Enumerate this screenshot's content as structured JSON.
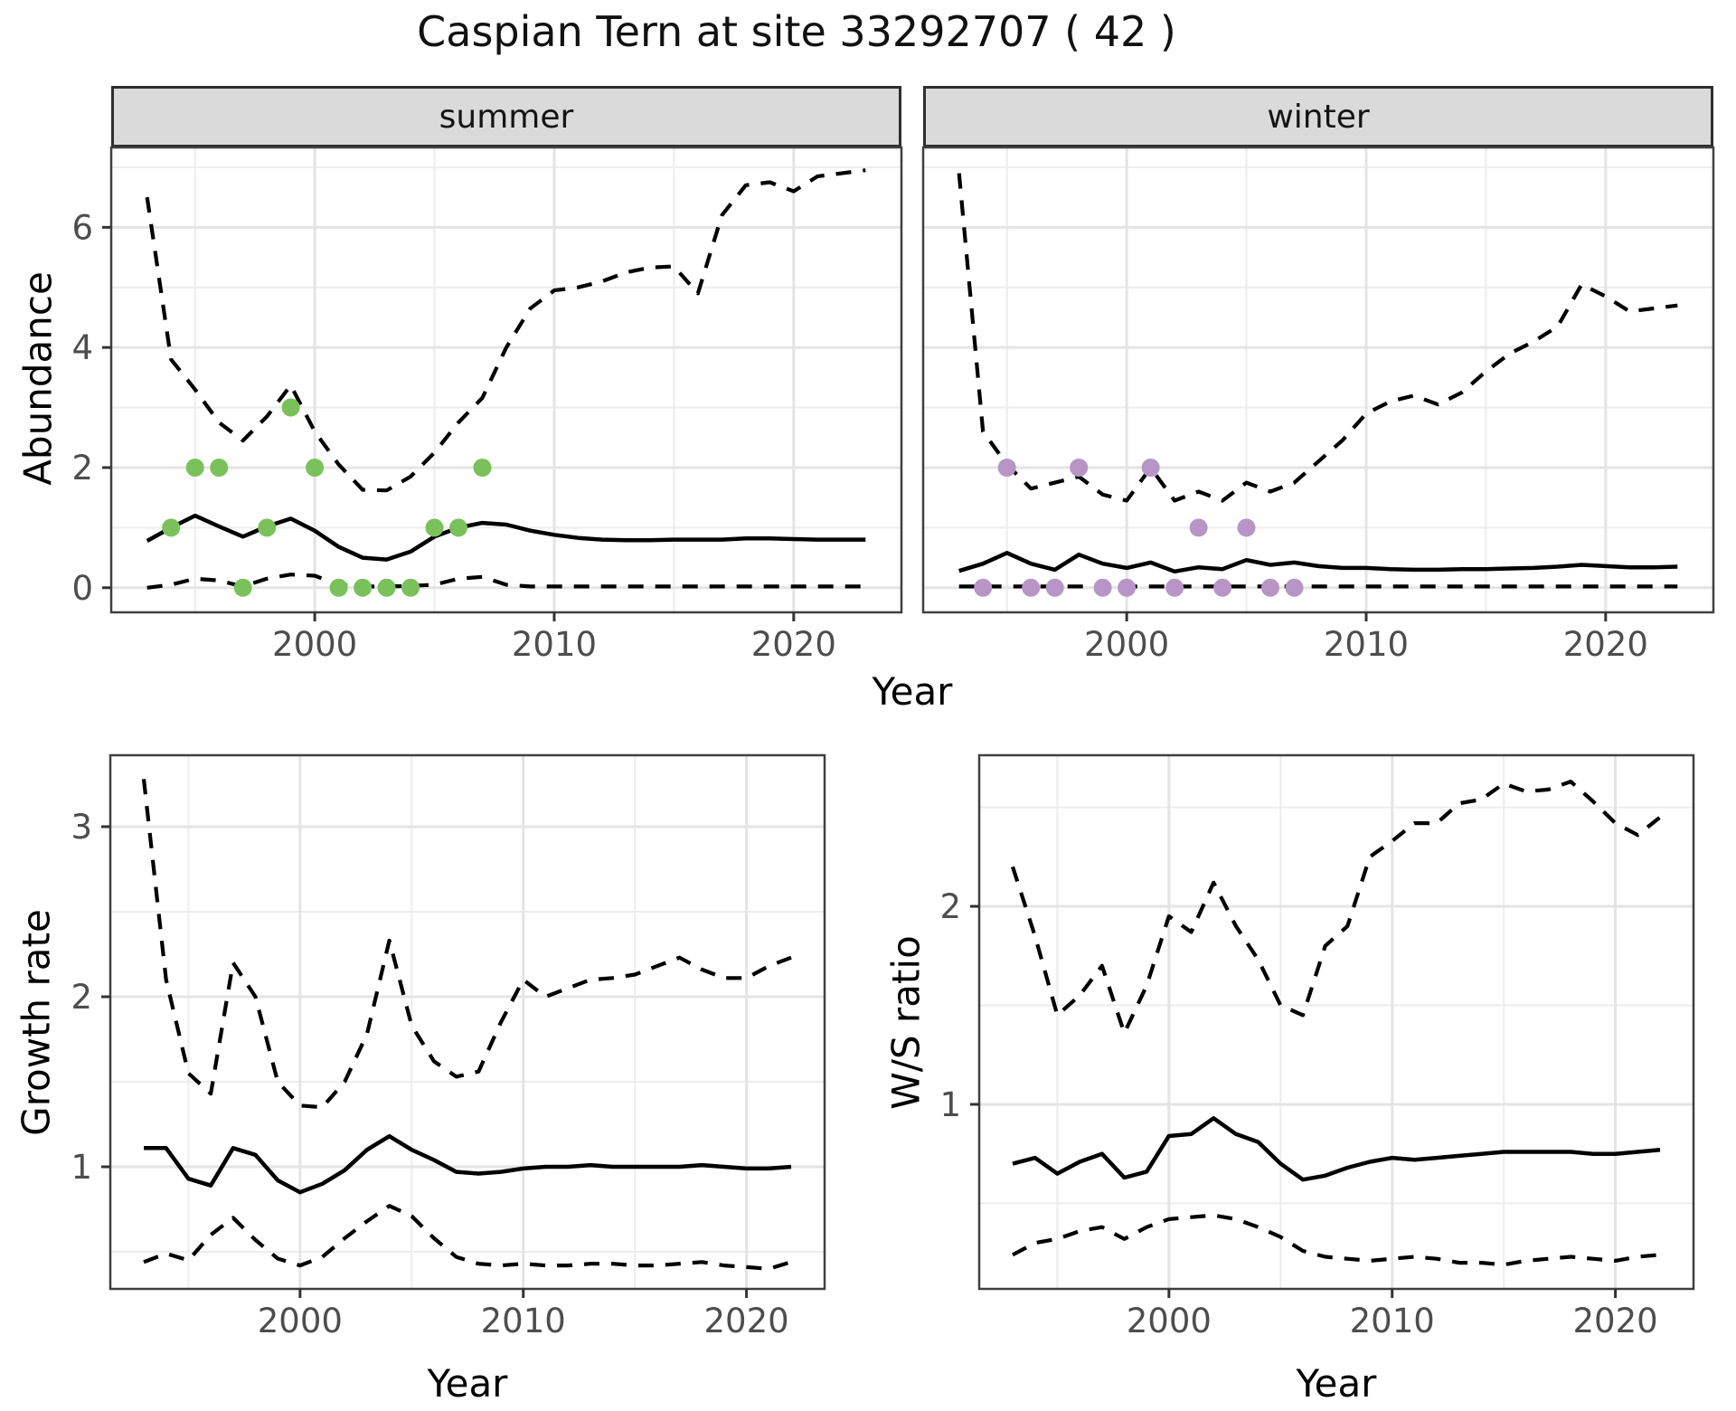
{
  "title": "Caspian Tern at site 33292707 ( 42 )",
  "colors": {
    "background": "#ffffff",
    "line": "#000000",
    "ci_dash": "#000000",
    "summer_points": "#7ac15c",
    "winter_points": "#b795c6",
    "grid_major": "#e4e4e4",
    "grid_minor": "#ededed",
    "panel_border": "#404040",
    "strip_bg": "#dadada",
    "tick_label": "#4d4d4d",
    "tick_mark": "#333333"
  },
  "axes": {
    "top": {
      "ylabel": "Abundance",
      "xlabel": "Year",
      "ytick_values": [
        0,
        2,
        4,
        6
      ],
      "ytick_labels": [
        "0",
        "2",
        "4",
        "6"
      ],
      "yminor": [
        1,
        3,
        5,
        7
      ],
      "xtick_values": [
        2000,
        2010,
        2020
      ],
      "xtick_labels": [
        "2000",
        "2010",
        "2020"
      ],
      "xminor": [
        1995,
        2005,
        2015
      ],
      "xdomain": [
        1991.5,
        2024.5
      ],
      "ydomain": [
        -0.41,
        7.33
      ]
    },
    "growth": {
      "ylabel": "Growth rate",
      "xlabel": "Year",
      "ytick_values": [
        1,
        2,
        3
      ],
      "ytick_labels": [
        "1",
        "2",
        "3"
      ],
      "yminor": [
        0.5,
        1.5,
        2.5
      ],
      "xtick_values": [
        2000,
        2010,
        2020
      ],
      "xtick_labels": [
        "2000",
        "2010",
        "2020"
      ],
      "xminor": [
        1995,
        2005,
        2015
      ],
      "xdomain": [
        1991.5,
        2023.5
      ],
      "ydomain": [
        0.282,
        3.42
      ]
    },
    "ws": {
      "ylabel": "W/S ratio",
      "xlabel": "Year",
      "ytick_values": [
        1,
        2
      ],
      "ytick_labels": [
        "1",
        "2"
      ],
      "yminor": [
        0.5,
        1.5,
        2.5
      ],
      "xtick_values": [
        2000,
        2010,
        2020
      ],
      "xtick_labels": [
        "2000",
        "2010",
        "2020"
      ],
      "xminor": [
        1995,
        2005,
        2015
      ],
      "xdomain": [
        1991.5,
        2023.5
      ],
      "ydomain": [
        0.068,
        2.763
      ]
    }
  },
  "chart_data": [
    {
      "type": "line",
      "panel": "summer",
      "facet_label": "summer",
      "axes": "top",
      "x": [
        1993,
        1994,
        1995,
        1996,
        1997,
        1998,
        1999,
        2000,
        2001,
        2002,
        2003,
        2004,
        2005,
        2006,
        2007,
        2008,
        2009,
        2010,
        2011,
        2012,
        2013,
        2014,
        2015,
        2016,
        2017,
        2018,
        2019,
        2020,
        2021,
        2022,
        2023
      ],
      "series": [
        {
          "name": "upper95",
          "style": "dashed",
          "values": [
            6.5,
            3.8,
            3.3,
            2.75,
            2.45,
            2.85,
            3.37,
            2.6,
            2.05,
            1.63,
            1.62,
            1.85,
            2.25,
            2.75,
            3.16,
            4.0,
            4.65,
            4.95,
            5.0,
            5.1,
            5.25,
            5.33,
            5.35,
            4.9,
            6.2,
            6.7,
            6.75,
            6.6,
            6.85,
            6.9,
            6.95
          ]
        },
        {
          "name": "median",
          "style": "solid",
          "values": [
            0.78,
            1.0,
            1.2,
            1.02,
            0.85,
            1.02,
            1.15,
            0.95,
            0.68,
            0.5,
            0.47,
            0.6,
            0.85,
            1.0,
            1.08,
            1.05,
            0.95,
            0.88,
            0.83,
            0.8,
            0.79,
            0.79,
            0.8,
            0.8,
            0.8,
            0.82,
            0.82,
            0.81,
            0.8,
            0.8,
            0.8
          ]
        },
        {
          "name": "lower95",
          "style": "dashed",
          "values": [
            0.0,
            0.05,
            0.15,
            0.12,
            0.02,
            0.15,
            0.22,
            0.2,
            0.05,
            0.02,
            0.02,
            0.03,
            0.05,
            0.15,
            0.18,
            0.05,
            0.02,
            0.02,
            0.02,
            0.02,
            0.02,
            0.02,
            0.02,
            0.02,
            0.02,
            0.02,
            0.02,
            0.02,
            0.02,
            0.02,
            0.02
          ]
        }
      ],
      "points": {
        "name": "observed-counts-summer",
        "color_key": "summer_points",
        "x": [
          1994,
          1995,
          1996,
          1997,
          1998,
          1999,
          2000,
          2001,
          2002,
          2003,
          2004,
          2005,
          2006,
          2007
        ],
        "y": [
          1,
          2,
          2,
          0,
          1,
          3,
          2,
          0,
          0,
          0,
          0,
          1,
          1,
          2
        ]
      }
    },
    {
      "type": "line",
      "panel": "winter",
      "facet_label": "winter",
      "axes": "top",
      "x": [
        1993,
        1994,
        1995,
        1996,
        1997,
        1998,
        1999,
        2000,
        2001,
        2002,
        2003,
        2004,
        2005,
        2006,
        2007,
        2008,
        2009,
        2010,
        2011,
        2012,
        2013,
        2014,
        2015,
        2016,
        2017,
        2018,
        2019,
        2020,
        2021,
        2022,
        2023
      ],
      "series": [
        {
          "name": "upper95",
          "style": "dashed",
          "values": [
            6.9,
            2.6,
            2.05,
            1.65,
            1.75,
            1.85,
            1.55,
            1.45,
            2.0,
            1.45,
            1.6,
            1.45,
            1.75,
            1.6,
            1.75,
            2.1,
            2.45,
            2.9,
            3.1,
            3.2,
            3.05,
            3.25,
            3.6,
            3.9,
            4.1,
            4.35,
            5.05,
            4.85,
            4.6,
            4.65,
            4.7
          ]
        },
        {
          "name": "median",
          "style": "solid",
          "values": [
            0.28,
            0.4,
            0.58,
            0.4,
            0.3,
            0.55,
            0.4,
            0.33,
            0.42,
            0.27,
            0.34,
            0.31,
            0.46,
            0.38,
            0.42,
            0.36,
            0.33,
            0.33,
            0.31,
            0.3,
            0.3,
            0.31,
            0.31,
            0.32,
            0.33,
            0.35,
            0.38,
            0.36,
            0.34,
            0.34,
            0.35
          ]
        },
        {
          "name": "lower95",
          "style": "dashed",
          "values": [
            0.02,
            0.02,
            0.02,
            0.02,
            0.02,
            0.02,
            0.02,
            0.02,
            0.02,
            0.02,
            0.02,
            0.02,
            0.02,
            0.02,
            0.02,
            0.02,
            0.02,
            0.02,
            0.02,
            0.02,
            0.02,
            0.02,
            0.02,
            0.02,
            0.02,
            0.02,
            0.02,
            0.02,
            0.02,
            0.02,
            0.02
          ]
        }
      ],
      "points": {
        "name": "observed-counts-winter",
        "color_key": "winter_points",
        "x": [
          1994,
          1995,
          1996,
          1997,
          1998,
          1999,
          2000,
          2001,
          2002,
          2003,
          2004,
          2005,
          2006,
          2007
        ],
        "y": [
          0,
          2,
          0,
          0,
          2,
          0,
          0,
          2,
          0,
          1,
          0,
          1,
          0,
          0
        ]
      }
    },
    {
      "type": "line",
      "panel": "growth",
      "facet_label": "",
      "axes": "growth",
      "x": [
        1993,
        1994,
        1995,
        1996,
        1997,
        1998,
        1999,
        2000,
        2001,
        2002,
        2003,
        2004,
        2005,
        2006,
        2007,
        2008,
        2009,
        2010,
        2011,
        2012,
        2013,
        2014,
        2015,
        2016,
        2017,
        2018,
        2019,
        2020,
        2021,
        2022
      ],
      "series": [
        {
          "name": "upper95",
          "style": "dashed",
          "values": [
            3.28,
            2.1,
            1.55,
            1.43,
            2.2,
            2.0,
            1.5,
            1.36,
            1.35,
            1.5,
            1.78,
            2.33,
            1.83,
            1.62,
            1.53,
            1.56,
            1.85,
            2.1,
            2.0,
            2.05,
            2.1,
            2.11,
            2.13,
            2.18,
            2.23,
            2.16,
            2.11,
            2.11,
            2.18,
            2.23
          ]
        },
        {
          "name": "median",
          "style": "solid",
          "values": [
            1.11,
            1.11,
            0.93,
            0.89,
            1.11,
            1.07,
            0.92,
            0.85,
            0.9,
            0.98,
            1.1,
            1.18,
            1.1,
            1.04,
            0.97,
            0.96,
            0.97,
            0.99,
            1.0,
            1.0,
            1.01,
            1.0,
            1.0,
            1.0,
            1.0,
            1.01,
            1.0,
            0.99,
            0.99,
            1.0
          ]
        },
        {
          "name": "lower95",
          "style": "dashed",
          "values": [
            0.44,
            0.49,
            0.45,
            0.6,
            0.7,
            0.57,
            0.46,
            0.42,
            0.47,
            0.58,
            0.68,
            0.77,
            0.71,
            0.58,
            0.47,
            0.43,
            0.42,
            0.43,
            0.42,
            0.42,
            0.43,
            0.43,
            0.42,
            0.42,
            0.43,
            0.44,
            0.42,
            0.41,
            0.4,
            0.44
          ]
        }
      ],
      "points": null
    },
    {
      "type": "line",
      "panel": "ws",
      "facet_label": "",
      "axes": "ws",
      "x": [
        1993,
        1994,
        1995,
        1996,
        1997,
        1998,
        1999,
        2000,
        2001,
        2002,
        2003,
        2004,
        2005,
        2006,
        2007,
        2008,
        2009,
        2010,
        2011,
        2012,
        2013,
        2014,
        2015,
        2016,
        2017,
        2018,
        2019,
        2020,
        2021,
        2022
      ],
      "series": [
        {
          "name": "upper95",
          "style": "dashed",
          "values": [
            2.2,
            1.85,
            1.45,
            1.55,
            1.7,
            1.36,
            1.6,
            1.95,
            1.87,
            2.12,
            1.9,
            1.73,
            1.5,
            1.45,
            1.8,
            1.9,
            2.25,
            2.33,
            2.42,
            2.42,
            2.52,
            2.54,
            2.62,
            2.58,
            2.59,
            2.63,
            2.53,
            2.42,
            2.36,
            2.45
          ]
        },
        {
          "name": "median",
          "style": "solid",
          "values": [
            0.7,
            0.73,
            0.65,
            0.71,
            0.75,
            0.63,
            0.66,
            0.84,
            0.85,
            0.93,
            0.85,
            0.81,
            0.7,
            0.62,
            0.64,
            0.68,
            0.71,
            0.73,
            0.72,
            0.73,
            0.74,
            0.75,
            0.76,
            0.76,
            0.76,
            0.76,
            0.75,
            0.75,
            0.76,
            0.77
          ]
        },
        {
          "name": "lower95",
          "style": "dashed",
          "values": [
            0.24,
            0.3,
            0.32,
            0.36,
            0.38,
            0.32,
            0.38,
            0.42,
            0.43,
            0.44,
            0.42,
            0.38,
            0.33,
            0.26,
            0.23,
            0.22,
            0.21,
            0.22,
            0.23,
            0.22,
            0.2,
            0.2,
            0.19,
            0.21,
            0.22,
            0.23,
            0.22,
            0.21,
            0.23,
            0.24
          ]
        }
      ],
      "points": null
    }
  ]
}
